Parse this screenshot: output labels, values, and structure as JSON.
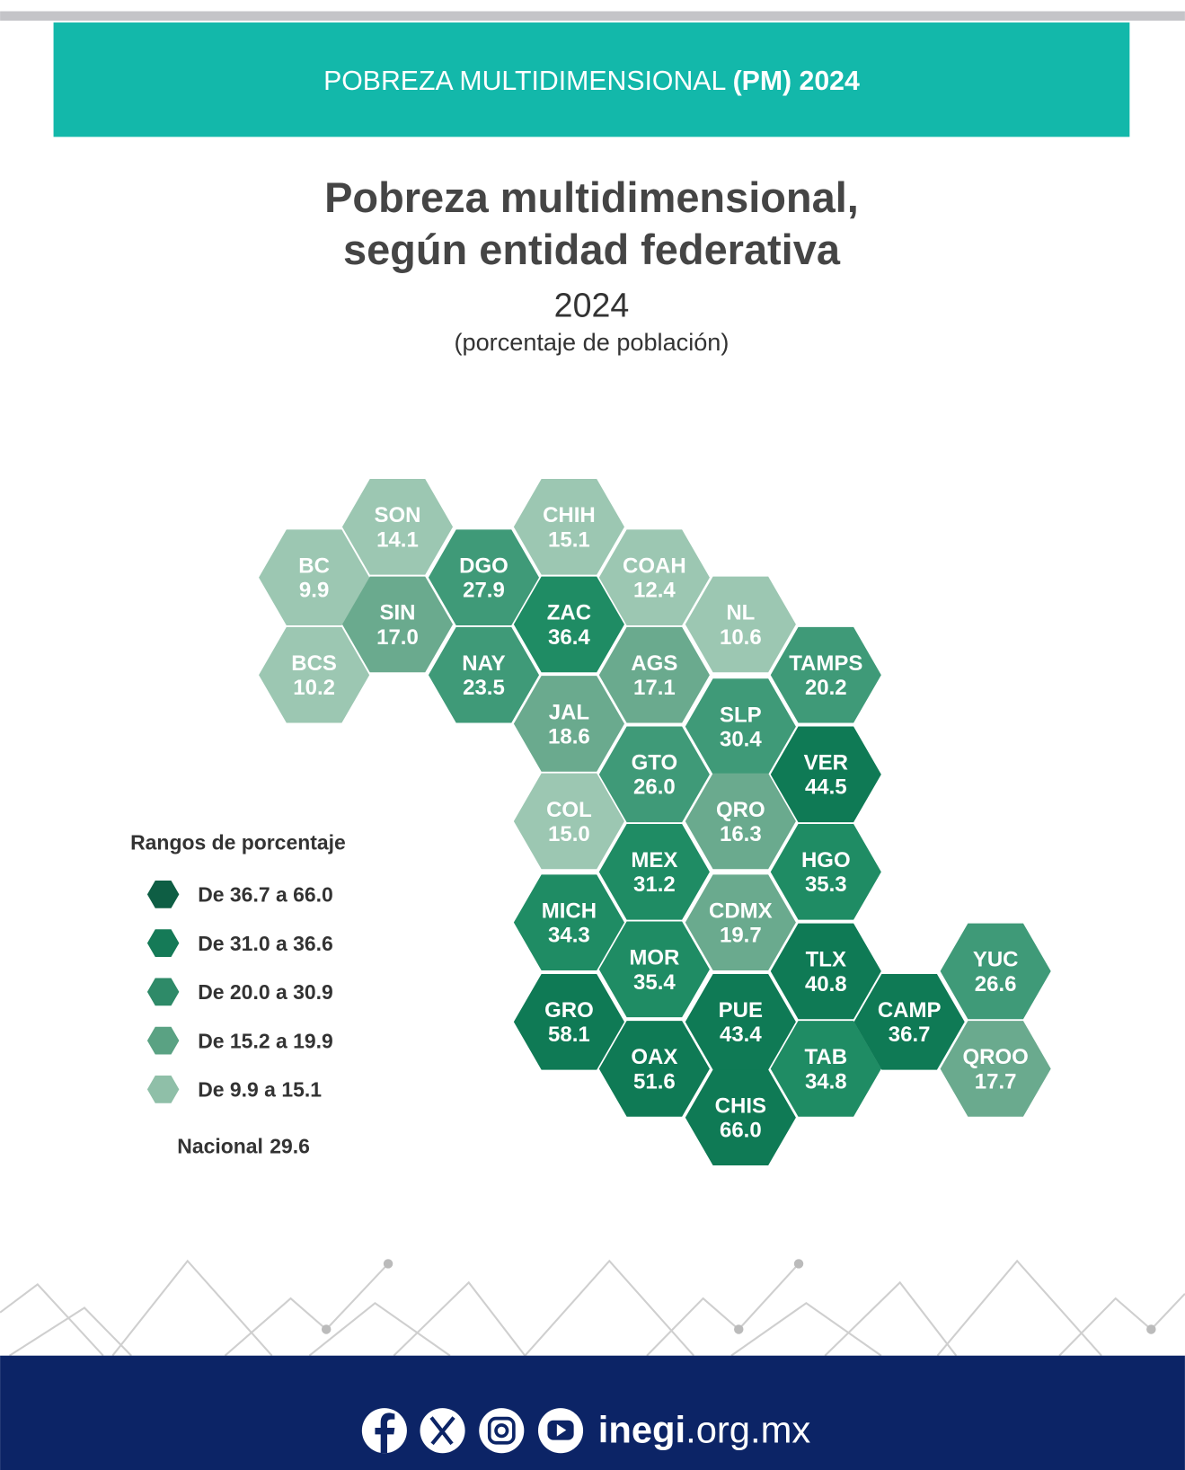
{
  "header": {
    "text": "POBREZA MULTIDIMENSIONAL ",
    "text_bold": "(PM) 2024"
  },
  "title": {
    "line1": "Pobreza multidimensional,",
    "line2": "según entidad federativa",
    "year": "2024",
    "subtitle": "(porcentaje de población)"
  },
  "states": [
    {
      "abbr": "SON",
      "value": "14.1",
      "color": "#9cc7b2"
    },
    {
      "abbr": "BC",
      "value": "9.9",
      "color": "#9cc7b2"
    },
    {
      "abbr": "BCS",
      "value": "10.2",
      "color": "#9cc7b2"
    },
    {
      "abbr": "SIN",
      "value": "17.0",
      "color": "#6aaa8e"
    },
    {
      "abbr": "DGO",
      "value": "27.9",
      "color": "#3f9a78"
    },
    {
      "abbr": "NAY",
      "value": "23.5",
      "color": "#3f9a78"
    },
    {
      "abbr": "CHIH",
      "value": "15.1",
      "color": "#9cc7b2"
    },
    {
      "abbr": "ZAC",
      "value": "36.4",
      "color": "#1f8c64"
    },
    {
      "abbr": "JAL",
      "value": "18.6",
      "color": "#6aaa8e"
    },
    {
      "abbr": "COL",
      "value": "15.0",
      "color": "#9cc7b2"
    },
    {
      "abbr": "MICH",
      "value": "34.3",
      "color": "#1f8c64"
    },
    {
      "abbr": "GRO",
      "value": "58.1",
      "color": "#0f7a55"
    },
    {
      "abbr": "COAH",
      "value": "12.4",
      "color": "#9cc7b2"
    },
    {
      "abbr": "AGS",
      "value": "17.1",
      "color": "#6aaa8e"
    },
    {
      "abbr": "GTO",
      "value": "26.0",
      "color": "#3f9a78"
    },
    {
      "abbr": "MEX",
      "value": "31.2",
      "color": "#1f8c64"
    },
    {
      "abbr": "MOR",
      "value": "35.4",
      "color": "#1f8c64"
    },
    {
      "abbr": "OAX",
      "value": "51.6",
      "color": "#0f7a55"
    },
    {
      "abbr": "NL",
      "value": "10.6",
      "color": "#9cc7b2"
    },
    {
      "abbr": "SLP",
      "value": "30.4",
      "color": "#3f9a78"
    },
    {
      "abbr": "QRO",
      "value": "16.3",
      "color": "#6aaa8e"
    },
    {
      "abbr": "CDMX",
      "value": "19.7",
      "color": "#6aaa8e"
    },
    {
      "abbr": "PUE",
      "value": "43.4",
      "color": "#0f7a55"
    },
    {
      "abbr": "CHIS",
      "value": "66.0",
      "color": "#0f7a55"
    },
    {
      "abbr": "TAMPS",
      "value": "20.2",
      "color": "#3f9a78"
    },
    {
      "abbr": "VER",
      "value": "44.5",
      "color": "#0f7a55"
    },
    {
      "abbr": "HGO",
      "value": "35.3",
      "color": "#1f8c64"
    },
    {
      "abbr": "TLX",
      "value": "40.8",
      "color": "#0f7a55"
    },
    {
      "abbr": "TAB",
      "value": "34.8",
      "color": "#1f8c64"
    },
    {
      "abbr": "CAMP",
      "value": "36.7",
      "color": "#0f7a55"
    },
    {
      "abbr": "YUC",
      "value": "26.6",
      "color": "#3f9a78"
    },
    {
      "abbr": "QROO",
      "value": "17.7",
      "color": "#6aaa8e"
    }
  ],
  "legend": {
    "title": "Rangos de porcentaje",
    "items": [
      {
        "label": "De 36.7 a 66.0",
        "color": "#0e5e44"
      },
      {
        "label": "De 31.0 a 36.6",
        "color": "#157a57"
      },
      {
        "label": "De 20.0 a 30.9",
        "color": "#2e8a68"
      },
      {
        "label": "De 15.2 a 19.9",
        "color": "#5aa283"
      },
      {
        "label": "De 9.9 a 15.1",
        "color": "#8fbfa8"
      }
    ],
    "national_label": "Nacional",
    "national_value": "29.6"
  },
  "footer": {
    "site_bold": "inegi",
    "site_rest": ".org.mx"
  }
}
